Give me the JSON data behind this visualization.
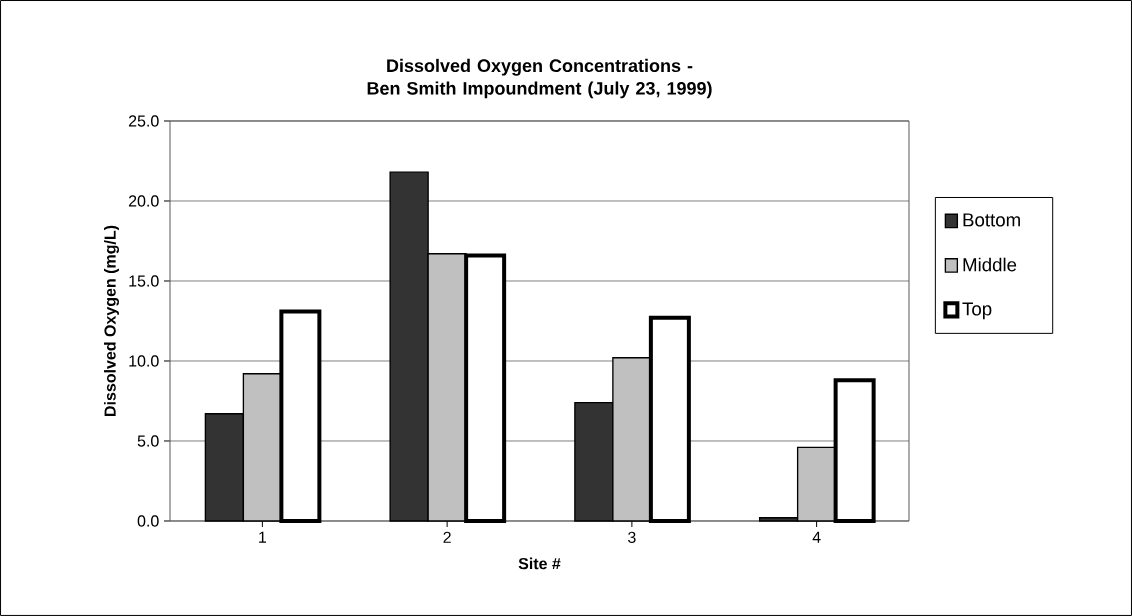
{
  "chart_data": {
    "type": "bar",
    "title": "Dissolved Oxygen Concentrations  -  Ben Smith Impoundment (July 23, 1999)",
    "xlabel": "Site #",
    "ylabel": "Dissolved Oxygen (mg/L)",
    "categories": [
      "1",
      "2",
      "3",
      "4"
    ],
    "series": [
      {
        "name": "Bottom",
        "color": "#333333",
        "values": [
          6.7,
          21.8,
          7.4,
          0.2
        ]
      },
      {
        "name": "Middle",
        "color": "#c0c0c0",
        "values": [
          9.2,
          16.7,
          10.2,
          4.6
        ]
      },
      {
        "name": "Top",
        "color": "#ffffff",
        "values": [
          13.1,
          16.6,
          12.7,
          8.8
        ]
      }
    ],
    "ylim": [
      0,
      25
    ],
    "yticks": [
      {
        "value": 0,
        "label": "0.0"
      },
      {
        "value": 5,
        "label": "5.0"
      },
      {
        "value": 10,
        "label": "10.0"
      },
      {
        "value": 15,
        "label": "15.0"
      },
      {
        "value": 20,
        "label": "20.0"
      },
      {
        "value": 25,
        "label": "25.0"
      }
    ],
    "grid": "y",
    "legend": "right"
  }
}
